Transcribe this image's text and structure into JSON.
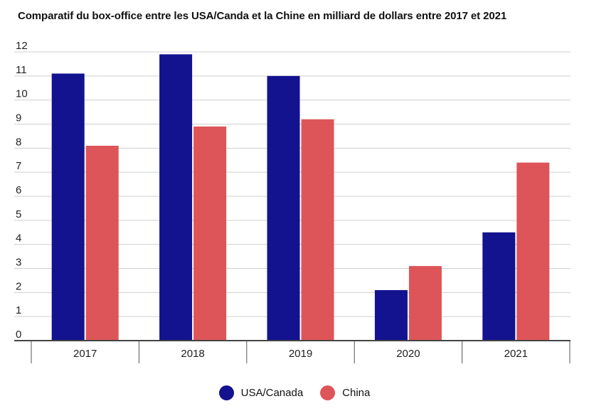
{
  "chart_data": {
    "type": "bar",
    "title": "Comparatif du box-office entre les USA/Canda et la Chine en milliard de dollars entre 2017 et 2021",
    "categories": [
      "2017",
      "2018",
      "2019",
      "2020",
      "2021"
    ],
    "series": [
      {
        "name": "USA/Canada",
        "color": "#13128f",
        "values": [
          11.1,
          11.9,
          11.0,
          2.1,
          4.5
        ]
      },
      {
        "name": "China",
        "color": "#dd5558",
        "values": [
          8.1,
          8.9,
          9.2,
          3.1,
          7.4
        ]
      }
    ],
    "ylim": [
      0,
      12
    ],
    "yticks": [
      "0",
      "1",
      "2",
      "3",
      "4",
      "5",
      "6",
      "7",
      "8",
      "9",
      "10",
      "11",
      "12"
    ],
    "xlabel": "",
    "ylabel": "",
    "grid": true,
    "legend_position": "bottom-center"
  }
}
